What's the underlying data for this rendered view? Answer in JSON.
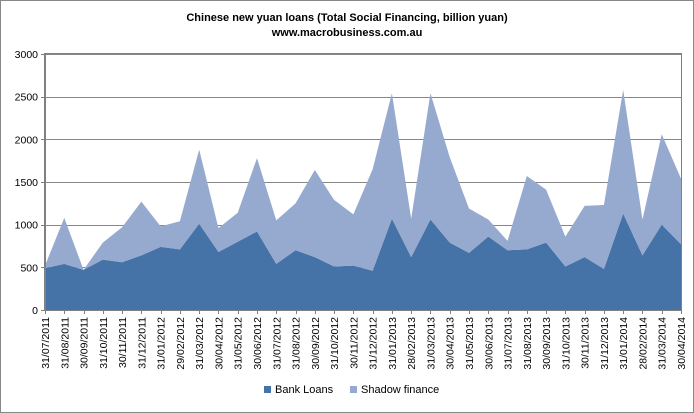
{
  "chart_data": {
    "type": "area",
    "title": "Chinese  new yuan loans (Total Social Financing, billion yuan)",
    "subtitle": "www.macrobusiness.com.au",
    "xlabel": "",
    "ylabel": "",
    "stacked": true,
    "ylim": [
      0,
      3000
    ],
    "yticks": [
      0,
      500,
      1000,
      1500,
      2000,
      2500,
      3000
    ],
    "grid": true,
    "legend_position": "bottom",
    "categories": [
      "31/07/2011",
      "31/08/2011",
      "30/09/2011",
      "31/10/2011",
      "30/11/2011",
      "31/12/2011",
      "31/01/2012",
      "29/02/2012",
      "31/03/2012",
      "30/04/2012",
      "31/05/2012",
      "30/06/2012",
      "31/07/2012",
      "31/08/2012",
      "30/09/2012",
      "31/10/2012",
      "30/11/2012",
      "31/12/2012",
      "31/01/2013",
      "28/02/2013",
      "31/03/2013",
      "30/04/2013",
      "31/05/2013",
      "30/06/2013",
      "31/07/2013",
      "31/08/2013",
      "30/09/2013",
      "31/10/2013",
      "30/11/2013",
      "31/12/2013",
      "31/01/2014",
      "28/02/2014",
      "31/03/2014",
      "30/04/2014"
    ],
    "series": [
      {
        "name": "Bank Loans",
        "color": "#4572a7",
        "values": [
          490,
          540,
          470,
          590,
          560,
          640,
          740,
          710,
          1010,
          680,
          800,
          920,
          540,
          700,
          620,
          510,
          520,
          460,
          1070,
          620,
          1060,
          790,
          670,
          860,
          700,
          710,
          790,
          510,
          620,
          480,
          1130,
          640,
          1000,
          770
        ]
      },
      {
        "name": "Shadow finance",
        "color": "#96a9cf",
        "values": [
          30,
          540,
          0,
          200,
          410,
          630,
          240,
          330,
          870,
          280,
          340,
          860,
          510,
          550,
          1020,
          780,
          600,
          1190,
          1470,
          450,
          1480,
          1000,
          520,
          200,
          110,
          860,
          620,
          350,
          600,
          750,
          1450,
          420,
          1060,
          770
        ]
      }
    ]
  }
}
